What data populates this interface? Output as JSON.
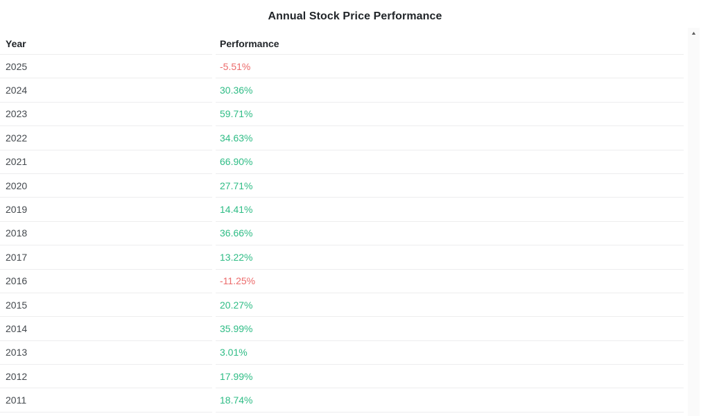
{
  "title": "Annual Stock Price Performance",
  "table": {
    "columns": [
      "Year",
      "Performance"
    ],
    "rows": [
      {
        "year": "2025",
        "performance": "-5.51%"
      },
      {
        "year": "2024",
        "performance": "30.36%"
      },
      {
        "year": "2023",
        "performance": "59.71%"
      },
      {
        "year": "2022",
        "performance": "34.63%"
      },
      {
        "year": "2021",
        "performance": "66.90%"
      },
      {
        "year": "2020",
        "performance": "27.71%"
      },
      {
        "year": "2019",
        "performance": "14.41%"
      },
      {
        "year": "2018",
        "performance": "36.66%"
      },
      {
        "year": "2017",
        "performance": "13.22%"
      },
      {
        "year": "2016",
        "performance": "-11.25%"
      },
      {
        "year": "2015",
        "performance": "20.27%"
      },
      {
        "year": "2014",
        "performance": "35.99%"
      },
      {
        "year": "2013",
        "performance": "3.01%"
      },
      {
        "year": "2012",
        "performance": "17.99%"
      },
      {
        "year": "2011",
        "performance": "18.74%"
      }
    ]
  },
  "colors": {
    "positive": "#2ebc85",
    "negative": "#ec6b6b"
  },
  "scrollbar": {
    "up_arrow": "▲"
  }
}
